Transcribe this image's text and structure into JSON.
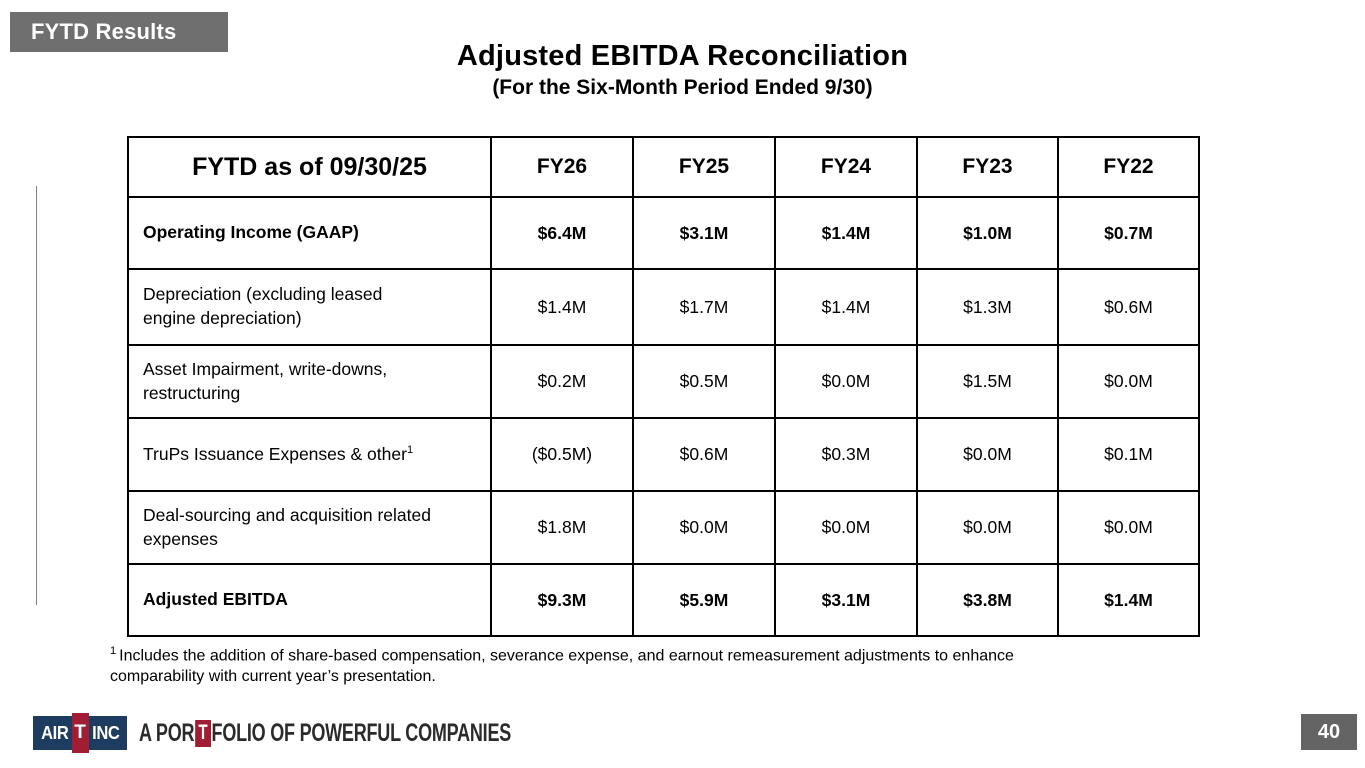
{
  "badge": {
    "label": "FYTD Results"
  },
  "title": {
    "main": "Adjusted EBITDA Reconciliation",
    "subtitle": "(For the Six-Month Period Ended 9/30)"
  },
  "table": {
    "header": {
      "label": "FYTD as of 09/30/25",
      "columns": [
        "FY26",
        "FY25",
        "FY24",
        "FY23",
        "FY22"
      ]
    },
    "rows": [
      {
        "label": "Operating Income (GAAP)",
        "bold": true,
        "values": [
          "$6.4M",
          "$3.1M",
          "$1.4M",
          "$1.0M",
          "$0.7M"
        ]
      },
      {
        "label": "Depreciation (excluding leased engine depreciation)",
        "bold": false,
        "values": [
          "$1.4M",
          "$1.7M",
          "$1.4M",
          "$1.3M",
          "$0.6M"
        ]
      },
      {
        "label": "Asset Impairment, write-downs, restructuring",
        "bold": false,
        "values": [
          "$0.2M",
          "$0.5M",
          "$0.0M",
          "$1.5M",
          "$0.0M"
        ]
      },
      {
        "label": "TruPs Issuance Expenses & other",
        "footnote_marker": "1",
        "bold": false,
        "values": [
          "($0.5M)",
          "$0.6M",
          "$0.3M",
          "$0.0M",
          "$0.1M"
        ]
      },
      {
        "label": "Deal-sourcing and acquisition related expenses",
        "bold": false,
        "values": [
          "$1.8M",
          "$0.0M",
          "$0.0M",
          "$0.0M",
          "$0.0M"
        ]
      },
      {
        "label": "Adjusted EBITDA",
        "bold": true,
        "values": [
          "$9.3M",
          "$5.9M",
          "$3.1M",
          "$3.8M",
          "$1.4M"
        ]
      }
    ]
  },
  "footnote": {
    "marker": "1",
    "text": "Includes the addition of share-based compensation, severance expense, and earnout remeasurement adjustments to enhance comparability with current year’s presentation."
  },
  "footer": {
    "logo": {
      "air": "AIR",
      "t": "T",
      "inc": "INC"
    },
    "tagline": {
      "pre": "A POR",
      "t": "T",
      "post": "FOLIO OF POWERFUL COMPANIES"
    },
    "page_number": "40"
  },
  "colors": {
    "badge_gray": "#6f6f6f",
    "page_box_gray": "#646464",
    "logo_navy": "#1d3c5f",
    "logo_red": "#a11d33",
    "tagline_text": "#2b2b2d",
    "table_border": "#000000"
  }
}
